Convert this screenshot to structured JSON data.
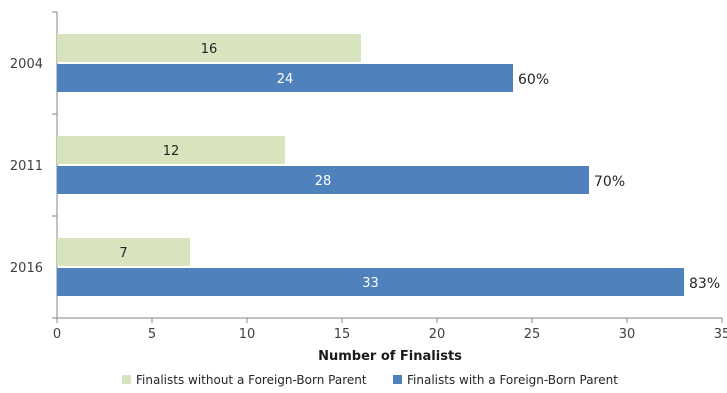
{
  "chart_data": {
    "type": "bar",
    "orientation": "horizontal",
    "categories": [
      "2004",
      "2011",
      "2016"
    ],
    "series": [
      {
        "name": "Finalists without a Foreign-Born Parent",
        "color": "#d7e4bd",
        "label_color": "#262626",
        "values": [
          16,
          12,
          7
        ]
      },
      {
        "name": "Finalists with a Foreign-Born Parent",
        "color": "#4f81bd",
        "label_color": "#ffffff",
        "values": [
          24,
          28,
          33
        ]
      }
    ],
    "annotations": [
      "60%",
      "70%",
      "83%"
    ],
    "xlabel": "Number of Finalists",
    "ylabel": "",
    "xlim": [
      0,
      35
    ],
    "xticks": [
      0,
      5,
      10,
      15,
      20,
      25,
      30,
      35
    ],
    "grid": false,
    "legend": "bottom"
  }
}
